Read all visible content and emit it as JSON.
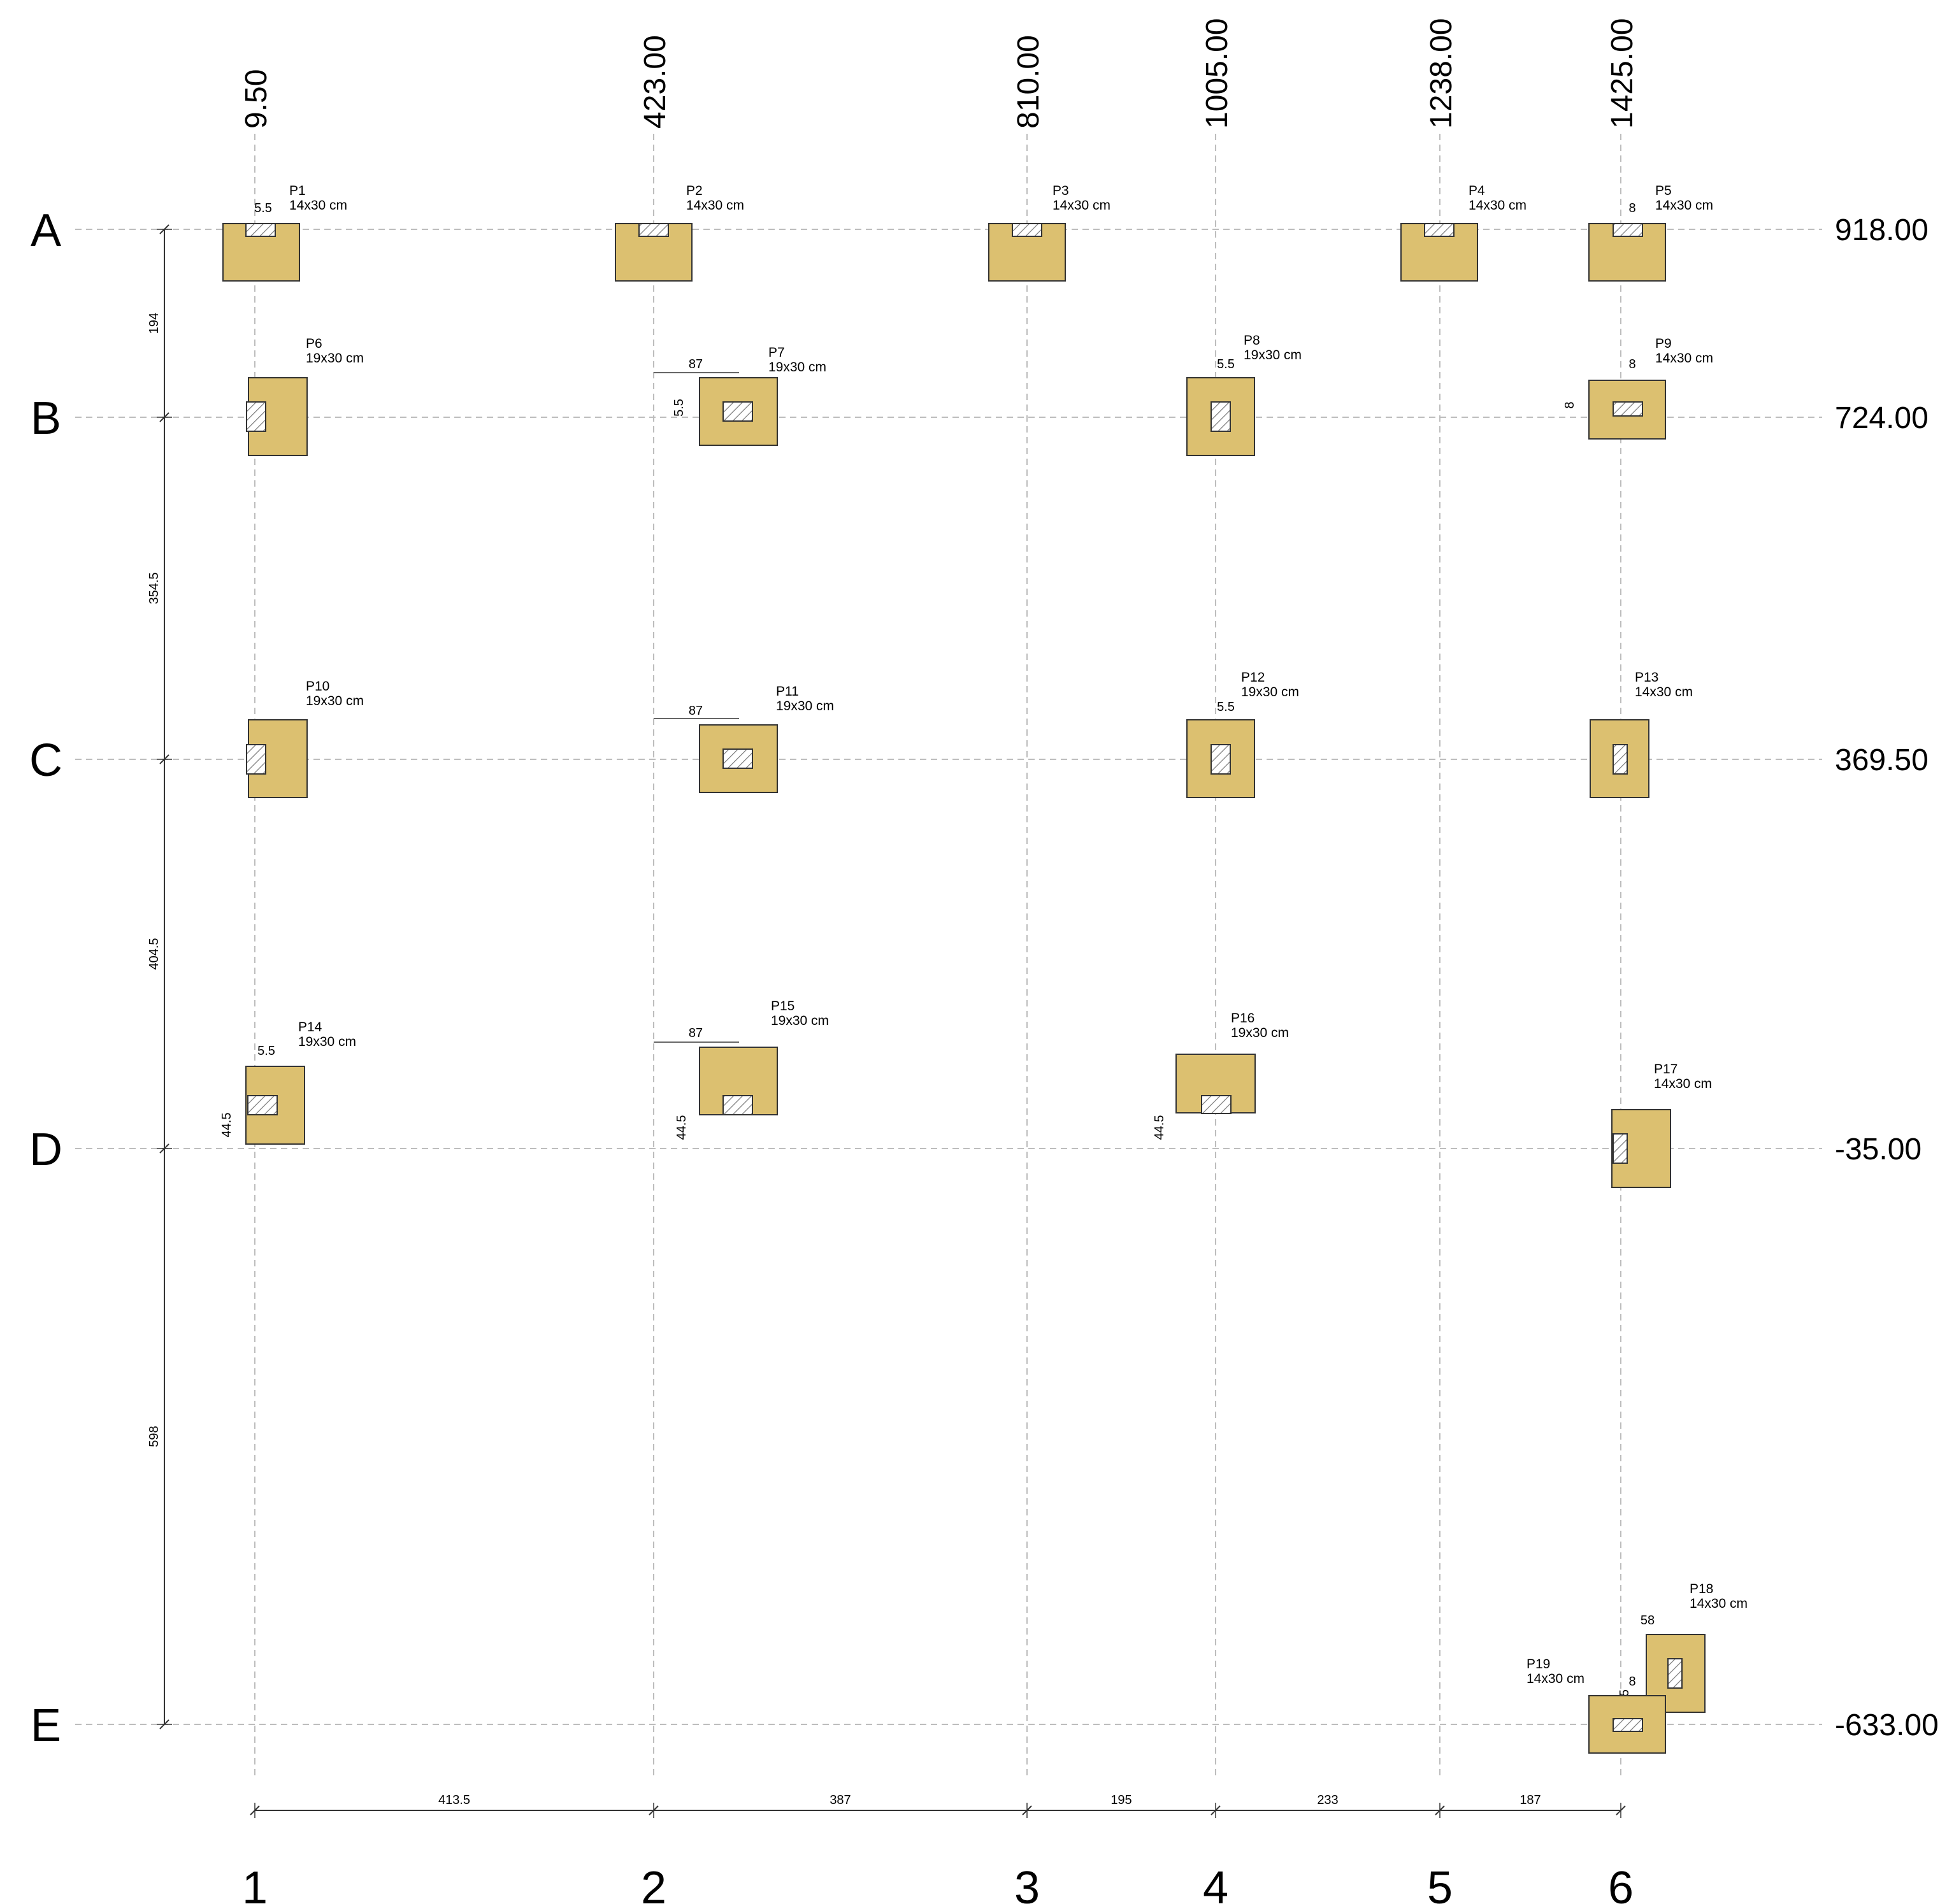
{
  "colors": {
    "footing_fill": "#DCC070",
    "footing_stroke": "#333333",
    "grid_line": "#bdbdbd",
    "dimension_line": "#333333",
    "column_fill": "#ffffff",
    "hatch": "#777777"
  },
  "grid": {
    "columns": [
      {
        "label": "1",
        "coord": "9.50"
      },
      {
        "label": "2",
        "coord": "423.00"
      },
      {
        "label": "3",
        "coord": "810.00"
      },
      {
        "label": "4",
        "coord": "1005.00"
      },
      {
        "label": "5",
        "coord": "1238.00"
      },
      {
        "label": "6",
        "coord": "1425.00"
      }
    ],
    "rows": [
      {
        "label": "A",
        "coord": "918.00"
      },
      {
        "label": "B",
        "coord": "724.00"
      },
      {
        "label": "C",
        "coord": "369.50"
      },
      {
        "label": "D",
        "coord": "-35.00"
      },
      {
        "label": "E",
        "coord": "-633.00"
      }
    ],
    "spacing_x": [
      "413.5",
      "387",
      "195",
      "233",
      "187"
    ],
    "spacing_y": [
      "194",
      "354.5",
      "404.5",
      "598"
    ]
  },
  "footings": [
    {
      "id": "P1",
      "size": "14x30 cm",
      "notes": [
        "5.5"
      ]
    },
    {
      "id": "P2",
      "size": "14x30 cm",
      "notes": []
    },
    {
      "id": "P3",
      "size": "14x30 cm",
      "notes": []
    },
    {
      "id": "P4",
      "size": "14x30 cm",
      "notes": []
    },
    {
      "id": "P5",
      "size": "14x30 cm",
      "notes": [
        "8"
      ]
    },
    {
      "id": "P6",
      "size": "19x30 cm",
      "notes": []
    },
    {
      "id": "P7",
      "size": "19x30 cm",
      "notes": [
        "87",
        "5.5"
      ]
    },
    {
      "id": "P8",
      "size": "19x30 cm",
      "notes": [
        "5.5"
      ]
    },
    {
      "id": "P9",
      "size": "14x30 cm",
      "notes": [
        "8",
        "8"
      ]
    },
    {
      "id": "P10",
      "size": "19x30 cm",
      "notes": []
    },
    {
      "id": "P11",
      "size": "19x30 cm",
      "notes": [
        "87"
      ]
    },
    {
      "id": "P12",
      "size": "19x30 cm",
      "notes": [
        "5.5"
      ]
    },
    {
      "id": "P13",
      "size": "14x30 cm",
      "notes": []
    },
    {
      "id": "P14",
      "size": "19x30 cm",
      "notes": [
        "5.5",
        "44.5"
      ]
    },
    {
      "id": "P15",
      "size": "19x30 cm",
      "notes": [
        "87",
        "44.5"
      ]
    },
    {
      "id": "P16",
      "size": "19x30 cm",
      "notes": [
        "44.5"
      ]
    },
    {
      "id": "P17",
      "size": "14x30 cm",
      "notes": []
    },
    {
      "id": "P18",
      "size": "14x30 cm",
      "notes": [
        "58"
      ]
    },
    {
      "id": "P19",
      "size": "14x30 cm",
      "notes": [
        "8",
        "5.5"
      ]
    }
  ]
}
